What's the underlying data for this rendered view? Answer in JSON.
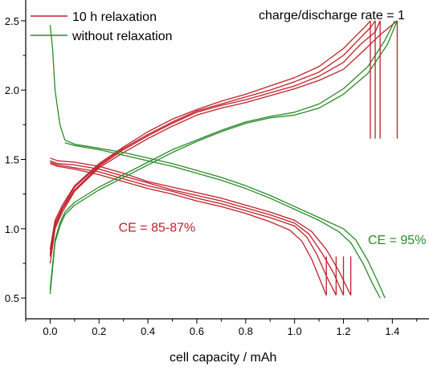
{
  "chart_data": {
    "type": "line",
    "title": "",
    "xlabel": "cell capacity / mAh",
    "ylabel": "",
    "xlim": [
      -0.1,
      1.55
    ],
    "ylim": [
      0.35,
      2.65
    ],
    "xticks": [
      "0.0",
      "0.2",
      "0.4",
      "0.6",
      "0.8",
      "1.0",
      "1.2",
      "1.4"
    ],
    "yticks": [
      "0.5",
      "1.0",
      "1.5",
      "2.0",
      "2.5"
    ],
    "grid": false,
    "legend_placement": "top-left",
    "note": "charge/discharge rate = 1",
    "annotations": [
      {
        "text": "CE = 85-87%",
        "color": "#c0202a",
        "x": 0.28,
        "y": 0.98
      },
      {
        "text": "CE = 95%",
        "color": "#2a8a2a",
        "x": 1.3,
        "y": 0.89
      }
    ],
    "series": [
      {
        "name": "10 h relaxation",
        "color": "#c0202a",
        "cycles": [
          {
            "charge": [
              [
                0.0,
                0.75
              ],
              [
                0.02,
                1.0
              ],
              [
                0.05,
                1.12
              ],
              [
                0.1,
                1.27
              ],
              [
                0.2,
                1.44
              ],
              [
                0.3,
                1.55
              ],
              [
                0.4,
                1.65
              ],
              [
                0.5,
                1.74
              ],
              [
                0.6,
                1.82
              ],
              [
                0.7,
                1.87
              ],
              [
                0.8,
                1.91
              ],
              [
                0.9,
                1.96
              ],
              [
                1.0,
                2.01
              ],
              [
                1.1,
                2.07
              ],
              [
                1.2,
                2.15
              ],
              [
                1.28,
                2.28
              ],
              [
                1.35,
                2.4
              ],
              [
                1.42,
                2.5
              ]
            ],
            "cut": 1.42,
            "discharge": [
              [
                0.0,
                1.51
              ],
              [
                0.03,
                1.49
              ],
              [
                0.1,
                1.48
              ],
              [
                0.2,
                1.45
              ],
              [
                0.3,
                1.4
              ],
              [
                0.4,
                1.34
              ],
              [
                0.5,
                1.3
              ],
              [
                0.6,
                1.26
              ],
              [
                0.7,
                1.22
              ],
              [
                0.8,
                1.17
              ],
              [
                0.9,
                1.12
              ],
              [
                1.0,
                1.06
              ],
              [
                1.07,
                0.98
              ],
              [
                1.13,
                0.85
              ],
              [
                1.18,
                0.7
              ],
              [
                1.23,
                0.52
              ]
            ],
            "end": 1.23
          },
          {
            "charge": [
              [
                0.0,
                0.8
              ],
              [
                0.02,
                1.02
              ],
              [
                0.05,
                1.14
              ],
              [
                0.1,
                1.28
              ],
              [
                0.2,
                1.45
              ],
              [
                0.3,
                1.57
              ],
              [
                0.4,
                1.67
              ],
              [
                0.5,
                1.76
              ],
              [
                0.6,
                1.84
              ],
              [
                0.7,
                1.89
              ],
              [
                0.8,
                1.93
              ],
              [
                0.9,
                1.98
              ],
              [
                1.0,
                2.03
              ],
              [
                1.1,
                2.1
              ],
              [
                1.2,
                2.2
              ],
              [
                1.27,
                2.33
              ],
              [
                1.33,
                2.42
              ],
              [
                1.35,
                2.5
              ]
            ],
            "cut": 1.35,
            "discharge": [
              [
                0.0,
                1.49
              ],
              [
                0.03,
                1.47
              ],
              [
                0.1,
                1.46
              ],
              [
                0.2,
                1.43
              ],
              [
                0.3,
                1.38
              ],
              [
                0.4,
                1.33
              ],
              [
                0.5,
                1.28
              ],
              [
                0.6,
                1.24
              ],
              [
                0.7,
                1.2
              ],
              [
                0.8,
                1.15
              ],
              [
                0.9,
                1.1
              ],
              [
                1.0,
                1.04
              ],
              [
                1.06,
                0.96
              ],
              [
                1.11,
                0.83
              ],
              [
                1.16,
                0.68
              ],
              [
                1.2,
                0.52
              ]
            ],
            "end": 1.2
          },
          {
            "charge": [
              [
                0.0,
                0.82
              ],
              [
                0.02,
                1.04
              ],
              [
                0.05,
                1.15
              ],
              [
                0.1,
                1.3
              ],
              [
                0.2,
                1.46
              ],
              [
                0.3,
                1.58
              ],
              [
                0.4,
                1.68
              ],
              [
                0.5,
                1.77
              ],
              [
                0.6,
                1.85
              ],
              [
                0.7,
                1.9
              ],
              [
                0.8,
                1.95
              ],
              [
                0.9,
                2.0
              ],
              [
                1.0,
                2.06
              ],
              [
                1.1,
                2.13
              ],
              [
                1.2,
                2.25
              ],
              [
                1.26,
                2.36
              ],
              [
                1.31,
                2.45
              ],
              [
                1.33,
                2.5
              ]
            ],
            "cut": 1.33,
            "discharge": [
              [
                0.0,
                1.48
              ],
              [
                0.03,
                1.46
              ],
              [
                0.1,
                1.44
              ],
              [
                0.2,
                1.41
              ],
              [
                0.3,
                1.36
              ],
              [
                0.4,
                1.31
              ],
              [
                0.5,
                1.27
              ],
              [
                0.6,
                1.22
              ],
              [
                0.7,
                1.18
              ],
              [
                0.8,
                1.13
              ],
              [
                0.9,
                1.08
              ],
              [
                1.0,
                1.02
              ],
              [
                1.05,
                0.94
              ],
              [
                1.09,
                0.82
              ],
              [
                1.13,
                0.66
              ],
              [
                1.17,
                0.52
              ]
            ],
            "end": 1.17
          },
          {
            "charge": [
              [
                0.0,
                0.85
              ],
              [
                0.02,
                1.06
              ],
              [
                0.05,
                1.17
              ],
              [
                0.1,
                1.31
              ],
              [
                0.2,
                1.47
              ],
              [
                0.3,
                1.59
              ],
              [
                0.4,
                1.7
              ],
              [
                0.5,
                1.79
              ],
              [
                0.6,
                1.86
              ],
              [
                0.7,
                1.92
              ],
              [
                0.8,
                1.97
              ],
              [
                0.9,
                2.03
              ],
              [
                1.0,
                2.09
              ],
              [
                1.1,
                2.17
              ],
              [
                1.2,
                2.3
              ],
              [
                1.25,
                2.39
              ],
              [
                1.29,
                2.46
              ],
              [
                1.31,
                2.5
              ]
            ],
            "cut": 1.31,
            "discharge": [
              [
                0.0,
                1.47
              ],
              [
                0.03,
                1.45
              ],
              [
                0.1,
                1.43
              ],
              [
                0.2,
                1.39
              ],
              [
                0.3,
                1.34
              ],
              [
                0.4,
                1.29
              ],
              [
                0.5,
                1.25
              ],
              [
                0.6,
                1.2
              ],
              [
                0.7,
                1.16
              ],
              [
                0.8,
                1.11
              ],
              [
                0.9,
                1.05
              ],
              [
                0.98,
                0.99
              ],
              [
                1.03,
                0.91
              ],
              [
                1.07,
                0.78
              ],
              [
                1.1,
                0.65
              ],
              [
                1.13,
                0.52
              ]
            ],
            "end": 1.13
          }
        ]
      },
      {
        "name": "without relaxation",
        "color": "#2a8a2a",
        "cycles": [
          {
            "charge": [
              [
                0.0,
                0.53
              ],
              [
                0.02,
                0.9
              ],
              [
                0.04,
                1.02
              ],
              [
                0.06,
                1.1
              ],
              [
                0.1,
                1.17
              ],
              [
                0.2,
                1.28
              ],
              [
                0.3,
                1.37
              ],
              [
                0.4,
                1.46
              ],
              [
                0.5,
                1.55
              ],
              [
                0.6,
                1.63
              ],
              [
                0.7,
                1.7
              ],
              [
                0.8,
                1.76
              ],
              [
                0.9,
                1.8
              ],
              [
                1.0,
                1.82
              ],
              [
                1.1,
                1.87
              ],
              [
                1.2,
                1.97
              ],
              [
                1.3,
                2.12
              ],
              [
                1.38,
                2.33
              ],
              [
                1.42,
                2.5
              ]
            ],
            "discharge": [
              [
                0.0,
                2.47
              ],
              [
                0.01,
                2.3
              ],
              [
                0.02,
                2.0
              ],
              [
                0.04,
                1.75
              ],
              [
                0.06,
                1.64
              ],
              [
                0.1,
                1.61
              ],
              [
                0.2,
                1.58
              ],
              [
                0.3,
                1.55
              ],
              [
                0.4,
                1.51
              ],
              [
                0.5,
                1.47
              ],
              [
                0.6,
                1.42
              ],
              [
                0.7,
                1.37
              ],
              [
                0.8,
                1.31
              ],
              [
                0.9,
                1.24
              ],
              [
                1.0,
                1.16
              ],
              [
                1.1,
                1.08
              ],
              [
                1.2,
                1.0
              ],
              [
                1.25,
                0.92
              ],
              [
                1.3,
                0.77
              ],
              [
                1.34,
                0.62
              ],
              [
                1.37,
                0.5
              ]
            ]
          },
          {
            "charge": [
              [
                0.0,
                0.56
              ],
              [
                0.02,
                0.92
              ],
              [
                0.04,
                1.04
              ],
              [
                0.06,
                1.12
              ],
              [
                0.1,
                1.19
              ],
              [
                0.2,
                1.3
              ],
              [
                0.3,
                1.39
              ],
              [
                0.4,
                1.48
              ],
              [
                0.5,
                1.57
              ],
              [
                0.6,
                1.64
              ],
              [
                0.7,
                1.71
              ],
              [
                0.8,
                1.77
              ],
              [
                0.9,
                1.81
              ],
              [
                1.0,
                1.84
              ],
              [
                1.1,
                1.9
              ],
              [
                1.2,
                2.01
              ],
              [
                1.3,
                2.17
              ],
              [
                1.37,
                2.36
              ],
              [
                1.41,
                2.5
              ]
            ],
            "discharge": [
              [
                0.06,
                1.62
              ],
              [
                0.1,
                1.6
              ],
              [
                0.2,
                1.57
              ],
              [
                0.3,
                1.53
              ],
              [
                0.4,
                1.49
              ],
              [
                0.5,
                1.45
              ],
              [
                0.6,
                1.4
              ],
              [
                0.7,
                1.35
              ],
              [
                0.8,
                1.29
              ],
              [
                0.9,
                1.22
              ],
              [
                1.0,
                1.14
              ],
              [
                1.1,
                1.06
              ],
              [
                1.18,
                0.98
              ],
              [
                1.23,
                0.9
              ],
              [
                1.28,
                0.75
              ],
              [
                1.32,
                0.6
              ],
              [
                1.35,
                0.5
              ]
            ]
          }
        ]
      }
    ]
  }
}
